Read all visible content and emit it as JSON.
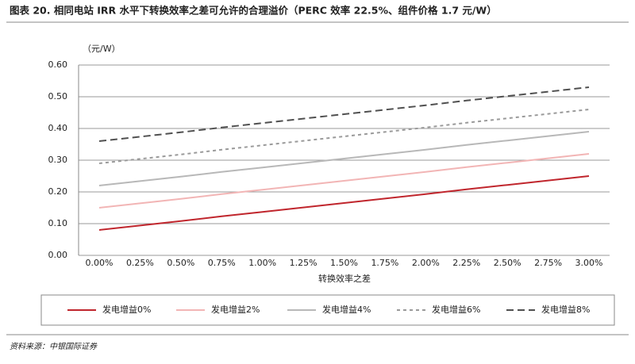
{
  "chart_data": {
    "type": "line",
    "title": "图表 20. 相同电站 IRR 水平下转换效率之差可允许的合理溢价（PERC 效率 22.5%、组件价格 1.7 元/W）",
    "y_unit_label": "（元/W）",
    "x_label": "转换效率之差",
    "source": "资料来源：中银国际证券",
    "categories": [
      "0.00%",
      "0.25%",
      "0.50%",
      "0.75%",
      "1.00%",
      "1.25%",
      "1.50%",
      "1.75%",
      "2.00%",
      "2.25%",
      "2.50%",
      "2.75%",
      "3.00%"
    ],
    "series": [
      {
        "name": "发电增益0%",
        "color": "#c0262d",
        "style": "solid",
        "values": [
          0.08,
          0.094,
          0.108,
          0.123,
          0.137,
          0.151,
          0.165,
          0.179,
          0.193,
          0.208,
          0.222,
          0.236,
          0.25
        ]
      },
      {
        "name": "发电增益2%",
        "color": "#f2b5b5",
        "style": "solid",
        "values": [
          0.15,
          0.164,
          0.178,
          0.193,
          0.207,
          0.221,
          0.235,
          0.249,
          0.263,
          0.278,
          0.292,
          0.306,
          0.32
        ]
      },
      {
        "name": "发电增益4%",
        "color": "#b8b8b8",
        "style": "solid",
        "values": [
          0.22,
          0.234,
          0.248,
          0.263,
          0.277,
          0.291,
          0.305,
          0.319,
          0.333,
          0.348,
          0.362,
          0.376,
          0.39
        ]
      },
      {
        "name": "发电增益6%",
        "color": "#9a9a9a",
        "style": "dashed",
        "values": [
          0.29,
          0.304,
          0.318,
          0.333,
          0.347,
          0.361,
          0.375,
          0.389,
          0.403,
          0.418,
          0.432,
          0.446,
          0.46
        ]
      },
      {
        "name": "发电增益8%",
        "color": "#505050",
        "style": "long-dashed",
        "values": [
          0.36,
          0.374,
          0.388,
          0.403,
          0.417,
          0.431,
          0.445,
          0.459,
          0.473,
          0.488,
          0.502,
          0.516,
          0.53
        ]
      }
    ],
    "ylim": [
      0,
      0.6
    ],
    "yticks": [
      {
        "value": 0,
        "label": "0.00"
      },
      {
        "value": 0.1,
        "label": "0.10"
      },
      {
        "value": 0.2,
        "label": "0.20"
      },
      {
        "value": 0.3,
        "label": "0.30"
      },
      {
        "value": 0.4,
        "label": "0.40"
      },
      {
        "value": 0.5,
        "label": "0.50"
      },
      {
        "value": 0.6,
        "label": "0.60"
      }
    ],
    "grid": true,
    "legend": "bottom"
  }
}
